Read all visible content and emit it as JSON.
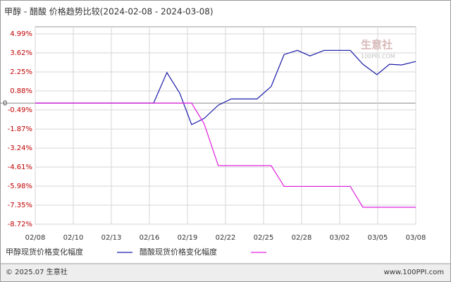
{
  "chart_data": {
    "type": "line",
    "title": "甲醇 - 醋酸 价格趋势比较(2024-02-08 - 2024-03-08)",
    "xlim": [
      0,
      10
    ],
    "xticks": [
      {
        "value": 0,
        "label": "02/08"
      },
      {
        "value": 1,
        "label": "02/10"
      },
      {
        "value": 2,
        "label": "02/13"
      },
      {
        "value": 3,
        "label": "02/16"
      },
      {
        "value": 4,
        "label": "02/19"
      },
      {
        "value": 5,
        "label": "02/22"
      },
      {
        "value": 6,
        "label": "02/25"
      },
      {
        "value": 7,
        "label": "02/28"
      },
      {
        "value": 8,
        "label": "03/02"
      },
      {
        "value": 9,
        "label": "03/05"
      },
      {
        "value": 10,
        "label": "03/08"
      }
    ],
    "ylim": [
      -8.72,
      4.99
    ],
    "yticks": [
      {
        "value": 4.99,
        "label": "4.99%"
      },
      {
        "value": 3.62,
        "label": "3.62%"
      },
      {
        "value": 2.25,
        "label": "2.25%"
      },
      {
        "value": 0.88,
        "label": "0.88%"
      },
      0,
      {
        "value": -0.49,
        "label": "-0.49%"
      },
      {
        "value": -1.87,
        "label": "-1.87%"
      },
      {
        "value": -3.24,
        "label": "-3.24%"
      },
      {
        "value": -4.61,
        "label": "-4.61%"
      },
      {
        "value": -5.98,
        "label": "-5.98%"
      },
      {
        "value": -7.35,
        "label": "-7.35%"
      },
      {
        "value": -8.72,
        "label": "-8.72%"
      }
    ],
    "grid": true,
    "series": [
      {
        "name": "甲醇现货价格变化幅度",
        "color": "#1a1aa8",
        "x": [
          0,
          3.11,
          3.46,
          3.8,
          4.11,
          4.44,
          4.81,
          5.15,
          5.83,
          6.2,
          6.54,
          6.89,
          7.22,
          7.59,
          8.28,
          8.61,
          8.98,
          9.31,
          9.63,
          10
        ],
        "values": [
          0,
          0,
          2.2,
          0.7,
          -1.55,
          -1.1,
          -0.15,
          0.3,
          0.3,
          1.2,
          3.5,
          3.8,
          3.4,
          3.8,
          3.8,
          2.8,
          2.05,
          2.8,
          2.75,
          3.0
        ]
      },
      {
        "name": "醋酸现货价格变化幅度",
        "color": "#e020e0",
        "x": [
          0,
          4.11,
          4.44,
          4.81,
          6.2,
          6.54,
          8.28,
          8.61,
          10
        ],
        "values": [
          0,
          0,
          -1.5,
          -4.5,
          -4.5,
          -6.0,
          -6.0,
          -7.5,
          -7.5
        ]
      }
    ],
    "watermark": {
      "name": "生意社",
      "site": "100PPI.COM"
    },
    "footer": {
      "left": "© 2025.07 生意社",
      "right": "www.100PPI.com"
    }
  }
}
